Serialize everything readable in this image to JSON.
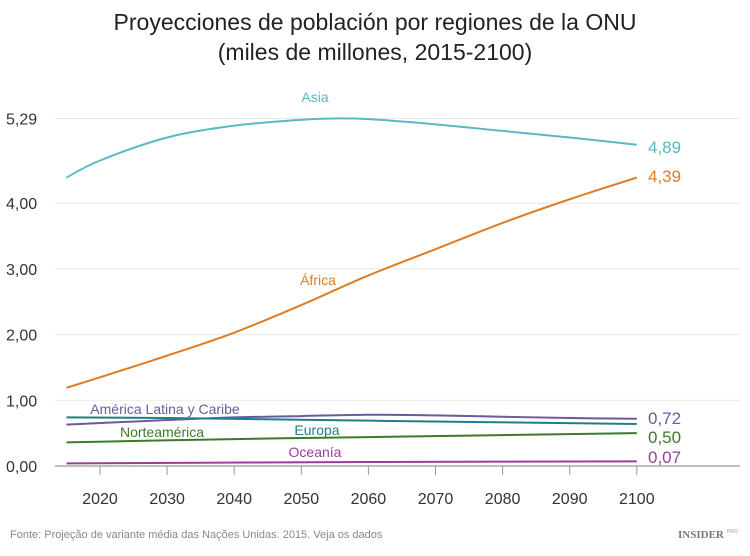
{
  "chart_data": {
    "type": "line",
    "title": "Proyecciones de población por regiones de la ONU",
    "subtitle": "(miles de millones, 2015-2100)",
    "xlabel": "",
    "ylabel": "",
    "xlim": [
      2015,
      2100
    ],
    "ylim": [
      0,
      5.29
    ],
    "x_ticks": [
      "2020",
      "2030",
      "2040",
      "2050",
      "2060",
      "2070",
      "2080",
      "2090",
      "2100"
    ],
    "y_ticks": [
      {
        "v": 0,
        "label": "0,00"
      },
      {
        "v": 1,
        "label": "1,00"
      },
      {
        "v": 2,
        "label": "2,00"
      },
      {
        "v": 3,
        "label": "3,00"
      },
      {
        "v": 4,
        "label": "4,00"
      },
      {
        "v": 5.29,
        "label": "5,29"
      }
    ],
    "grid": true,
    "legend": "inline labels",
    "series": [
      {
        "name": "Asia",
        "color": "#5bb8c4",
        "end_label": "4,89",
        "x": [
          2015,
          2020,
          2030,
          2040,
          2050,
          2055,
          2060,
          2070,
          2080,
          2090,
          2100
        ],
        "values": [
          4.39,
          4.65,
          5.0,
          5.18,
          5.27,
          5.29,
          5.28,
          5.2,
          5.1,
          5.0,
          4.89
        ]
      },
      {
        "name": "África",
        "color": "#e07b24",
        "end_label": "4,39",
        "x": [
          2015,
          2020,
          2030,
          2040,
          2050,
          2060,
          2070,
          2080,
          2090,
          2100
        ],
        "values": [
          1.19,
          1.35,
          1.68,
          2.03,
          2.45,
          2.9,
          3.3,
          3.7,
          4.06,
          4.39
        ]
      },
      {
        "name": "América Latina y Caribe",
        "color": "#6a5a9e",
        "end_label": "0,72",
        "x": [
          2015,
          2030,
          2040,
          2050,
          2060,
          2070,
          2080,
          2090,
          2100
        ],
        "values": [
          0.63,
          0.7,
          0.74,
          0.76,
          0.78,
          0.77,
          0.75,
          0.73,
          0.72
        ]
      },
      {
        "name": "Europa",
        "color": "#1f7f86",
        "end_label": "",
        "x": [
          2015,
          2030,
          2060,
          2100
        ],
        "values": [
          0.74,
          0.73,
          0.69,
          0.64
        ]
      },
      {
        "name": "Norteamérica",
        "color": "#3d7a2a",
        "end_label": "0,50",
        "x": [
          2015,
          2040,
          2060,
          2100
        ],
        "values": [
          0.36,
          0.41,
          0.44,
          0.5
        ]
      },
      {
        "name": "Oceanía",
        "color": "#9a3d9a",
        "end_label": "0,07",
        "x": [
          2015,
          2060,
          2100
        ],
        "values": [
          0.04,
          0.06,
          0.07
        ]
      }
    ]
  },
  "footer": {
    "source": "Fonte: Projeção de variante média das Nações Unidas. 2015. Veja os dados",
    "logo": "INSIDER PRO"
  }
}
